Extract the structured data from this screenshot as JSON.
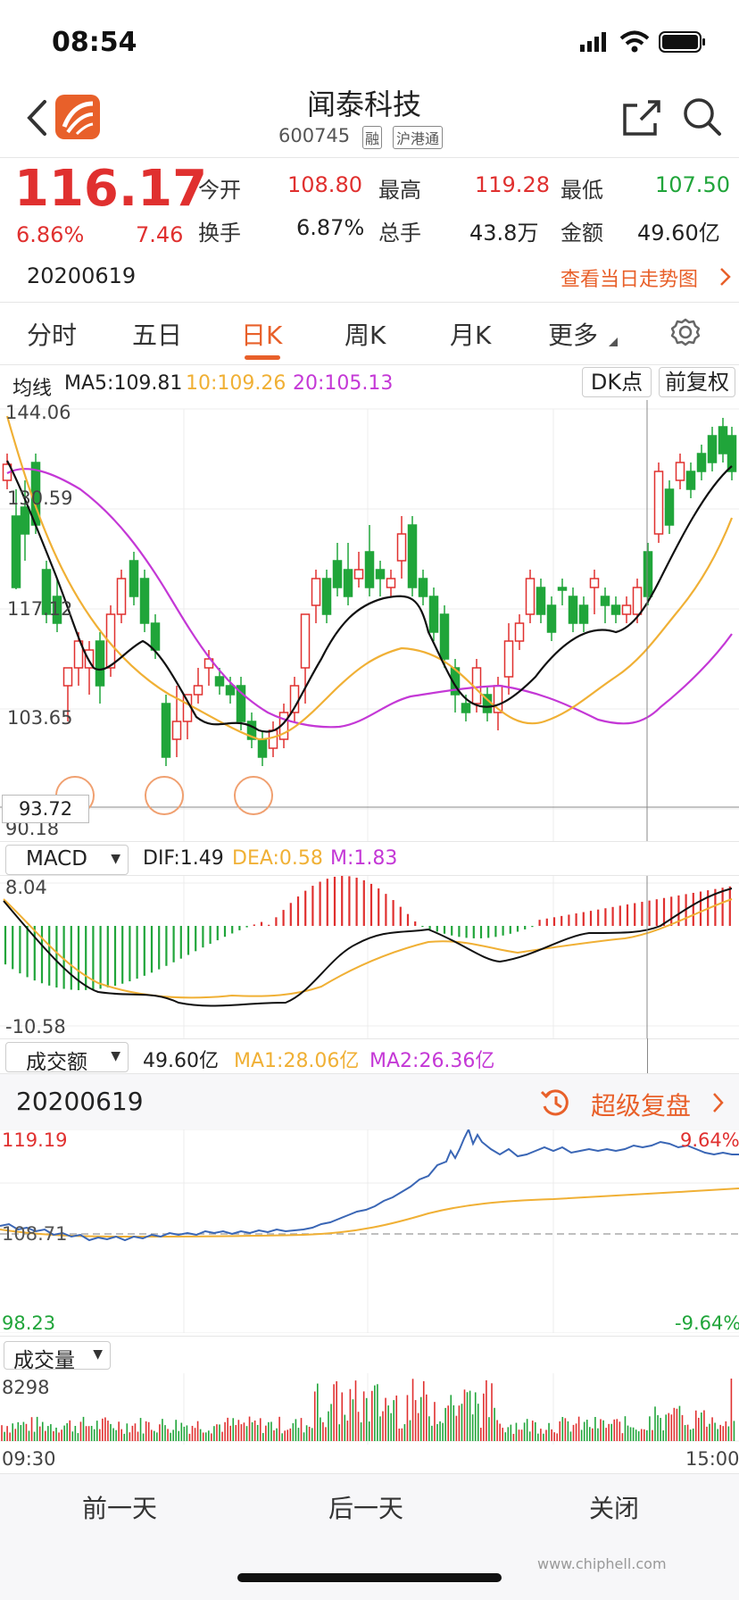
{
  "status_bar": {
    "time": "08:54"
  },
  "header": {
    "title": "闻泰科技",
    "code": "600745",
    "badge_rong": "融",
    "badge_hkt": "沪港通"
  },
  "quote": {
    "price": "116.17",
    "change_pct": "6.86%",
    "change": "7.46",
    "open_label": "今开",
    "open": "108.80",
    "high_label": "最高",
    "high": "119.28",
    "low_label": "最低",
    "low": "107.50",
    "turnover_label": "换手",
    "turnover": "6.87%",
    "volume_label": "总手",
    "volume": "43.8万",
    "amount_label": "金额",
    "amount": "49.60亿",
    "date": "20200619",
    "trend_link": "查看当日走势图"
  },
  "tabs": [
    {
      "label": "分时"
    },
    {
      "label": "五日"
    },
    {
      "label": "日K"
    },
    {
      "label": "周K"
    },
    {
      "label": "月K"
    },
    {
      "label": "更多"
    }
  ],
  "ma_bar": {
    "label": "均线",
    "ma5": "MA5:109.81",
    "ma10": "10:109.26",
    "ma20": "20:105.13",
    "dk_button": "DK点",
    "adjust_button": "前复权"
  },
  "kline": {
    "y_labels": [
      "144.06",
      "130.59",
      "117.12",
      "103.65",
      "90.18"
    ],
    "crosshair_value": "93.72"
  },
  "macd": {
    "selector": "MACD",
    "dif": "DIF:1.49",
    "dea": "DEA:0.58",
    "m": "M:1.83",
    "y_top": "8.04",
    "y_bottom": "-10.58"
  },
  "amount_bar": {
    "selector": "成交额",
    "value": "49.60亿",
    "ma1": "MA1:28.06亿",
    "ma2": "MA2:26.36亿"
  },
  "replay": {
    "date": "20200619",
    "label": "超级复盘"
  },
  "intraday": {
    "y_top": "119.19",
    "y_mid": "108.71",
    "y_bottom": "98.23",
    "pct_top": "9.64%",
    "pct_bottom": "-9.64%"
  },
  "volume": {
    "selector": "成交量",
    "y_top": "8298",
    "time_start": "09:30",
    "time_end": "15:00"
  },
  "footer": {
    "prev": "前一天",
    "next": "后一天",
    "close": "关闭"
  },
  "watermark": "www.chiphell.com",
  "colors": {
    "up": "#e0302f",
    "down": "#20a53a",
    "accent": "#e8602a",
    "ma5": "#111111",
    "ma10": "#f0b035",
    "ma20": "#c438d6",
    "intraday_line": "#3a66b5"
  }
}
